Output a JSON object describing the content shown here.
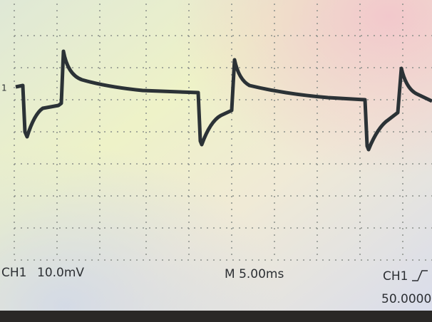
{
  "marker": "1",
  "readout": {
    "channel": "CH1",
    "scale": "10.0mV",
    "timebase": "M 5.00ms",
    "trigger_source": "CH1",
    "trigger_value": "50.0000"
  }
}
